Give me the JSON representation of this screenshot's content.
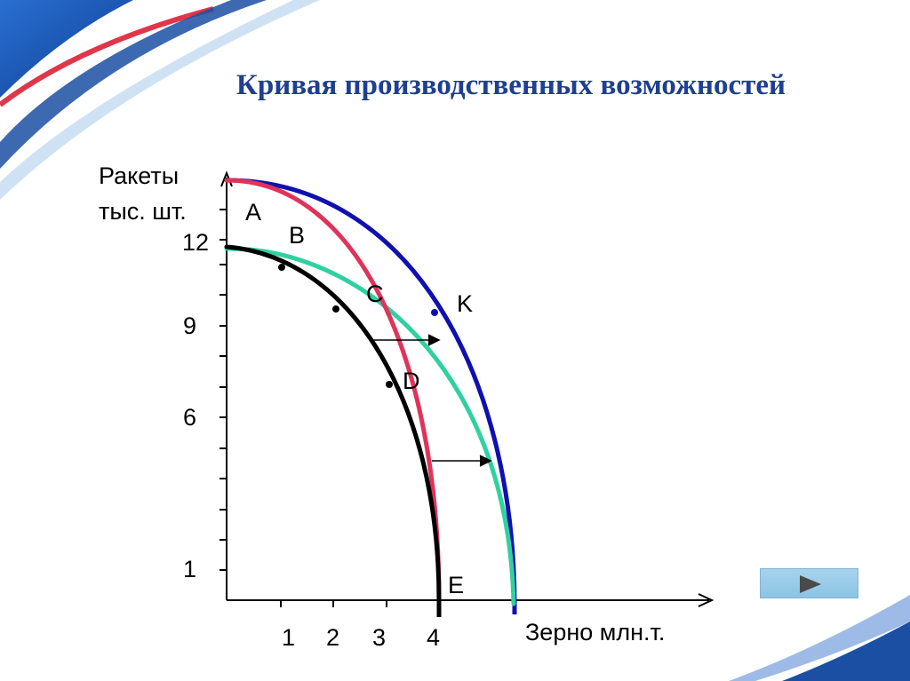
{
  "title": "Кривая производственных возможностей",
  "y_axis": {
    "line1": "Ракеты",
    "line2": "тыс. шт.",
    "ticks": [
      "12",
      "9",
      "6",
      "1"
    ]
  },
  "x_axis": {
    "label": "Зерно млн.т.",
    "ticks": [
      "1",
      "2",
      "3",
      "4"
    ]
  },
  "points": {
    "A": "A",
    "B": "B",
    "C": "C",
    "D": "D",
    "E": "E",
    "K": "K"
  },
  "colors": {
    "curve_original": "#000000",
    "curve_red": "#e0335a",
    "curve_teal": "#2fd1a0",
    "curve_blue": "#1010b0",
    "title": "#1f3f8f",
    "decor_blue": "#1b4fa3",
    "decor_red": "#e0364a"
  },
  "nav": {
    "next_icon": "play-triangle-icon"
  }
}
